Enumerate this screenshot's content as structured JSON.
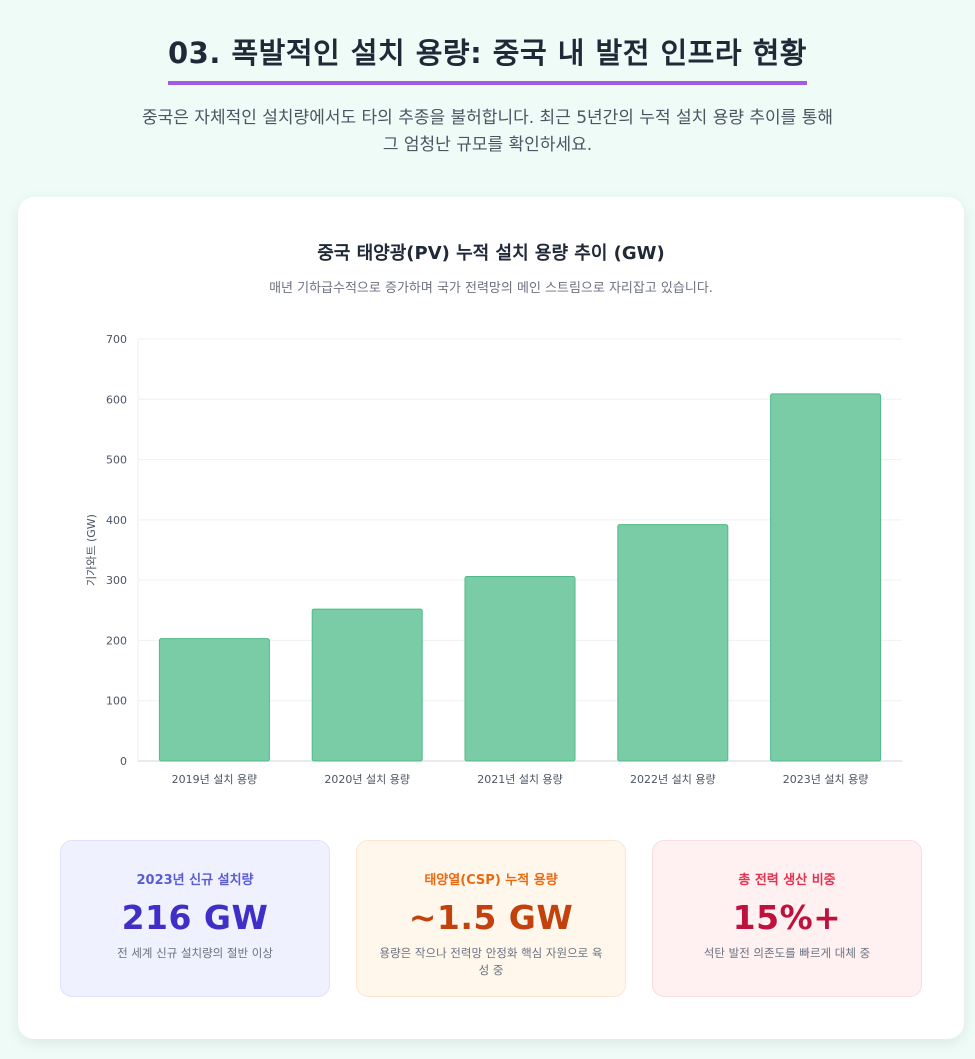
{
  "header": {
    "title": "03. 폭발적인 설치 용량: 중국 내 발전 인프라 현황",
    "subtitle": "중국은 자체적인 설치량에서도 타의 추종을 불허합니다. 최근 5년간의 누적 설치 용량 추이를 통해 그 엄청난 규모를 확인하세요."
  },
  "chart_data": {
    "type": "bar",
    "title": "중국 태양광(PV) 누적 설치 용량 추이 (GW)",
    "subtitle": "매년 기하급수적으로 증가하며 국가 전력망의 메인 스트림으로 자리잡고 있습니다.",
    "categories": [
      "2019년 설치 용량",
      "2020년 설치 용량",
      "2021년 설치 용량",
      "2022년 설치 용량",
      "2023년 설치 용량"
    ],
    "values": [
      203,
      252,
      306,
      392,
      609
    ],
    "ylabel": "기가와트 (GW)",
    "xlabel": "",
    "ylim": [
      0,
      700
    ],
    "yticks": [
      0,
      100,
      200,
      300,
      400,
      500,
      600,
      700
    ],
    "grid": true,
    "bar_color": "#7acca7",
    "bar_border": "#4dba88"
  },
  "stats": [
    {
      "label": "2023년 신규 설치량",
      "value": "216 GW",
      "desc": "전 세계 신규 설치량의 절반 이상"
    },
    {
      "label": "태양열(CSP) 누적 용량",
      "value": "~1.5 GW",
      "desc": "용량은 작으나 전력망 안정화 핵심 자원으로 육성 중"
    },
    {
      "label": "총 전력 생산 비중",
      "value": "15%+",
      "desc": "석탄 발전 의존도를 빠르게 대체 중"
    }
  ]
}
